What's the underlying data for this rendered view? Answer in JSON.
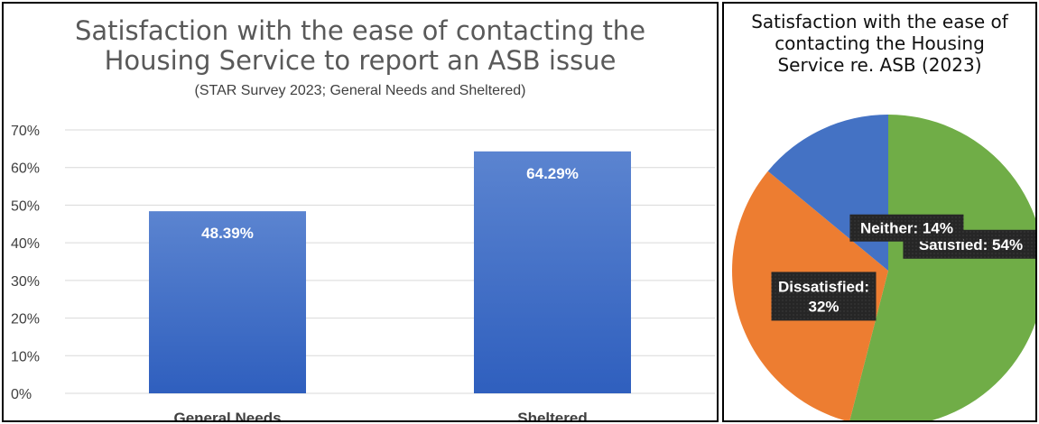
{
  "bar_chart": {
    "title_line1": "Satisfaction with the ease of contacting the",
    "title_line2": "Housing Service to report an ASB issue",
    "subtitle": "(STAR Survey 2023;  General Needs and Sheltered)"
  },
  "pie_chart": {
    "title_line1": "Satisfaction with the ease of",
    "title_line2": "contacting the Housing",
    "title_line3": "Service re. ASB (2023)"
  },
  "chart_data": [
    {
      "type": "bar",
      "categories": [
        "General Needs",
        "Sheltered"
      ],
      "values": [
        48.39,
        64.29
      ],
      "data_labels": [
        "48.39%",
        "64.29%"
      ],
      "ylim": [
        0,
        70
      ],
      "yticks": [
        "0%",
        "10%",
        "20%",
        "30%",
        "40%",
        "50%",
        "60%",
        "70%"
      ],
      "grid": true,
      "color": "#4472c4"
    },
    {
      "type": "pie",
      "slices": [
        {
          "label": "Satisfied",
          "value": 54,
          "text": "Satisfied: 54%",
          "color": "#70ad47"
        },
        {
          "label": "Dissatisfied",
          "value": 32,
          "text_line1": "Dissatisfied:",
          "text_line2": "32%",
          "color": "#ed7d31"
        },
        {
          "label": "Neither",
          "value": 14,
          "text": "Neither: 14%",
          "color": "#4472c4"
        }
      ]
    }
  ]
}
